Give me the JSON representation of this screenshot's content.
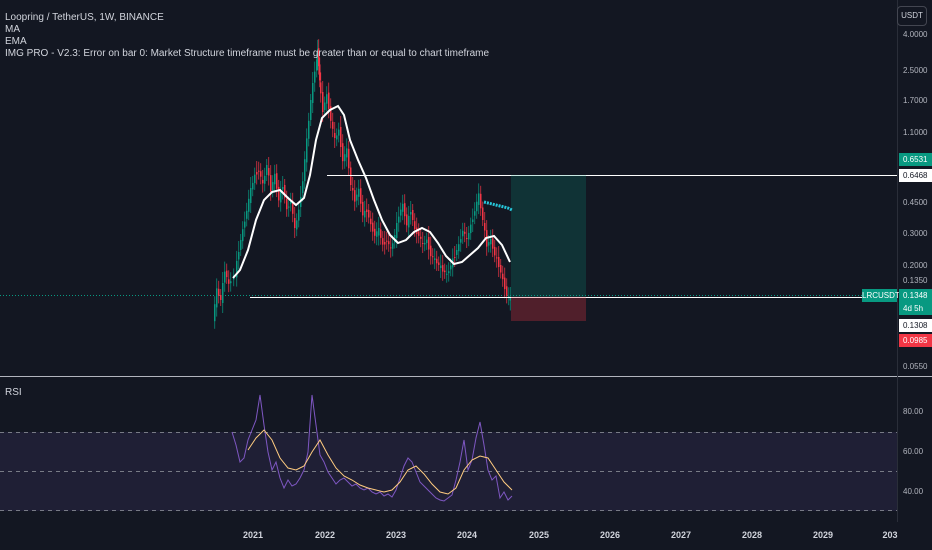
{
  "legend": {
    "title": "Loopring / TetherUS, 1W, BINANCE",
    "ma": "MA",
    "ema": "EMA",
    "img_pro": "IMG PRO - V2.3: Error on bar 0: Market Structure timeframe must be greater than or equal to chart timeframe"
  },
  "currency_button": "USDT",
  "price_axis": [
    "4.0000",
    "2.5000",
    "1.7000",
    "1.1000",
    "0.4500",
    "0.3000",
    "0.2000",
    "0.1350",
    "0.0550"
  ],
  "price_tags": {
    "target_price": "0.6531",
    "target_level": "0.6468",
    "symbol": "LRCUSDT",
    "last_price": "0.1348",
    "countdown": "4d 5h",
    "entry_price": "0.1308",
    "stop_price": "0.0985"
  },
  "rsi": {
    "label": "RSI",
    "axis": [
      "80.00",
      "60.00",
      "40.00"
    ]
  },
  "time_axis": [
    "2021",
    "2022",
    "2023",
    "2024",
    "2025",
    "2026",
    "2027",
    "2028",
    "2029",
    "203"
  ],
  "colors": {
    "background": "#131722",
    "up": "#089981",
    "down": "#f23645",
    "rsi_line": "#7e57c2",
    "rsi_ma": "#ffcc80",
    "ema": "#ffffff"
  }
}
